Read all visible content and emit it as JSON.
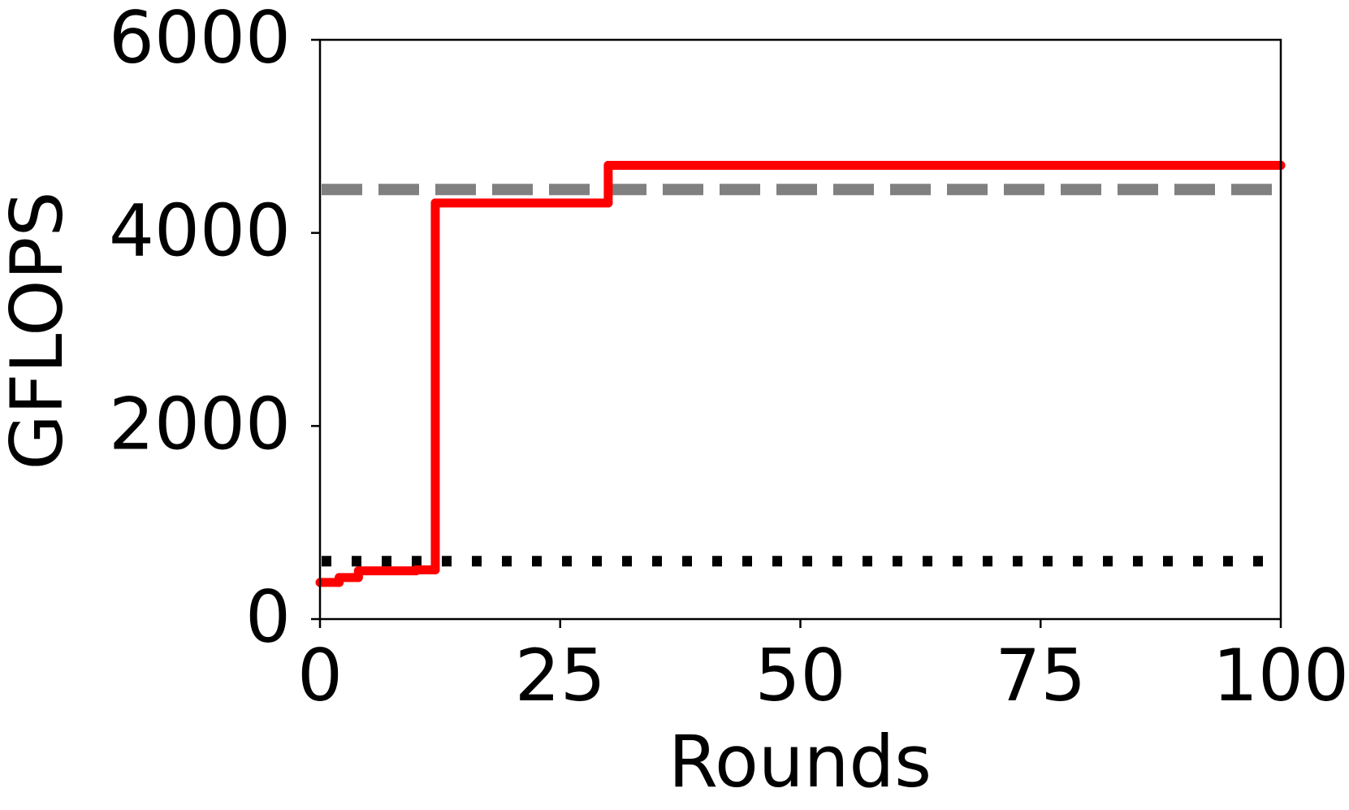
{
  "chart_data": {
    "type": "step",
    "xlabel": "Rounds",
    "ylabel": "GFLOPS",
    "x": [
      0,
      2,
      4,
      10,
      12,
      30,
      100
    ],
    "series": [
      {
        "color": "#ff0000",
        "values": [
          380,
          430,
          500,
          510,
          4310,
          4700,
          4700
        ]
      }
    ],
    "hlines": [
      {
        "value": 4450,
        "color": "#808080",
        "style": "dashed"
      },
      {
        "value": 600,
        "color": "#000000",
        "style": "dotted"
      }
    ],
    "xlim": [
      0,
      100
    ],
    "xticks": [
      0,
      25,
      50,
      75,
      100
    ],
    "ylim": [
      0,
      6000
    ],
    "yticks": [
      0,
      2000,
      4000,
      6000
    ],
    "grid": false
  }
}
